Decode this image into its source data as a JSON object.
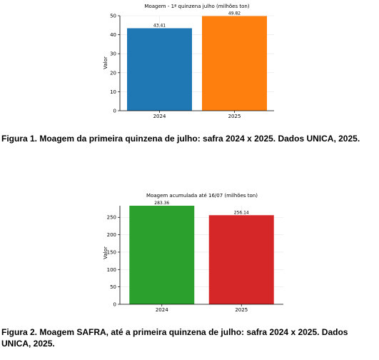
{
  "chart_data": [
    {
      "type": "bar",
      "title": "Moagem - 1ª quinzena julho (milhões ton)",
      "xlabel": "",
      "ylabel": "Valor",
      "categories": [
        "2024",
        "2025"
      ],
      "values": [
        43.41,
        49.82
      ],
      "value_labels": [
        "43.41",
        "49.82"
      ],
      "colors": [
        "#1f77b4",
        "#ff7f0e"
      ],
      "ylim": [
        0,
        50
      ],
      "yticks": [
        0,
        10,
        20,
        30,
        40,
        50
      ],
      "grid": true
    },
    {
      "type": "bar",
      "title": "Moagem acumulada até 16/07 (milhões ton)",
      "xlabel": "",
      "ylabel": "Valor",
      "categories": [
        "2024",
        "2025"
      ],
      "values": [
        283.36,
        256.14
      ],
      "value_labels": [
        "283.36",
        "256.14"
      ],
      "colors": [
        "#2ca02c",
        "#d62728"
      ],
      "ylim": [
        0,
        283.36
      ],
      "yticks": [
        0,
        50,
        100,
        150,
        200,
        250
      ],
      "grid": true
    }
  ],
  "captions": [
    "Figura 1.  Moagem da primeira quinzena de julho:  safra  2024 x 2025.   Dados UNICA, 2025.",
    "Figura 2.  Moagem SAFRA, até a primeira quinzena de julho:  safra  2024 x 2025.   Dados UNICA,  2025."
  ]
}
